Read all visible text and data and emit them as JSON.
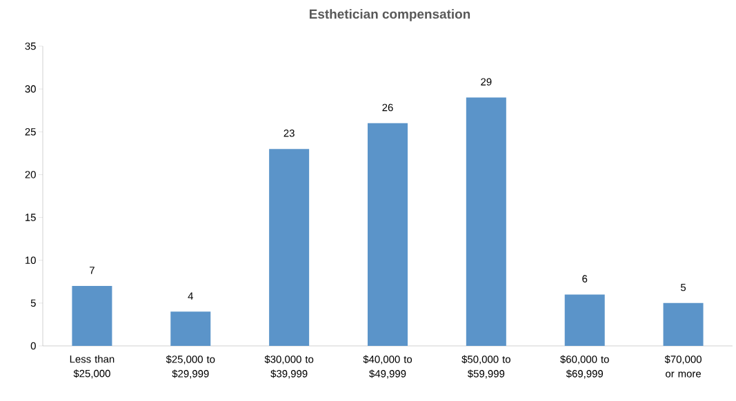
{
  "chart_data": {
    "type": "bar",
    "title": "Esthetician compensation",
    "categories": [
      "Less than $25,000",
      "$25,000 to $29,999",
      "$30,000 to $39,999",
      "$40,000 to $49,999",
      "$50,000 to $59,999",
      "$60,000 to $69,999",
      "$70,000 or more"
    ],
    "values": [
      7,
      4,
      23,
      26,
      29,
      6,
      5
    ],
    "color": "#5b94c9",
    "ylim": [
      0,
      35
    ],
    "yticks": [
      0,
      5,
      10,
      15,
      20,
      25,
      30,
      35
    ],
    "data_labels": true
  }
}
